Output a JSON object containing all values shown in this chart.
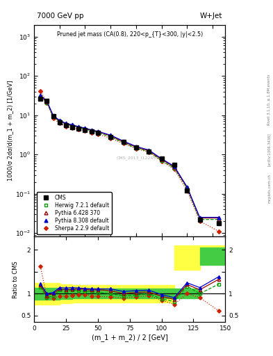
{
  "title_top": "7000 GeV pp",
  "title_right": "W+Jet",
  "main_title": "Pruned jet mass (CA(0.8), 220<p_{T}<300, |y|<2.5)",
  "xlabel": "(m_1 + m_2) / 2 [GeV]",
  "ylabel_main": "1000/σ 2dσ/d(m_1 + m_2) [1/GeV]",
  "ylabel_ratio": "Ratio to CMS",
  "watermark": "CMS_2013_I1224539",
  "rivet_label": "Rivet 3.1.10, ≥ 1.8M events",
  "arxiv_label": "[arXiv:1306.3436]",
  "mcplots_label": "mcplots.cern.ch",
  "xlim": [
    0,
    150
  ],
  "ylim_main": [
    0.008,
    2000
  ],
  "ylim_ratio": [
    0.35,
    2.3
  ],
  "cms_x": [
    5,
    10,
    15,
    20,
    25,
    30,
    35,
    40,
    45,
    50,
    60,
    70,
    80,
    90,
    100,
    110,
    120,
    130,
    145
  ],
  "cms_y": [
    26,
    23,
    9.5,
    6.5,
    5.5,
    5.0,
    4.5,
    4.2,
    3.8,
    3.5,
    2.8,
    2.1,
    1.5,
    1.2,
    0.8,
    0.55,
    0.12,
    0.022,
    0.018
  ],
  "herwig_x": [
    5,
    10,
    15,
    20,
    25,
    30,
    35,
    40,
    45,
    50,
    60,
    70,
    80,
    90,
    100,
    110,
    120,
    130,
    145
  ],
  "herwig_y": [
    30,
    21,
    9.0,
    7.0,
    5.8,
    5.4,
    4.8,
    4.4,
    4.0,
    3.6,
    2.8,
    2.0,
    1.45,
    1.2,
    0.7,
    0.45,
    0.14,
    0.022,
    0.022
  ],
  "pythia6_x": [
    5,
    10,
    15,
    20,
    25,
    30,
    35,
    40,
    45,
    50,
    60,
    70,
    80,
    90,
    100,
    110,
    120,
    130,
    145
  ],
  "pythia6_y": [
    31,
    22,
    9.5,
    7.2,
    6.0,
    5.5,
    5.0,
    4.6,
    4.1,
    3.8,
    3.0,
    2.1,
    1.55,
    1.25,
    0.75,
    0.48,
    0.145,
    0.024,
    0.024
  ],
  "pythia8_x": [
    5,
    10,
    15,
    20,
    25,
    30,
    35,
    40,
    45,
    50,
    60,
    70,
    80,
    90,
    100,
    110,
    120,
    130,
    145
  ],
  "pythia8_y": [
    32,
    23,
    9.8,
    7.4,
    6.2,
    5.7,
    5.1,
    4.7,
    4.2,
    3.9,
    3.1,
    2.2,
    1.6,
    1.3,
    0.78,
    0.5,
    0.15,
    0.025,
    0.025
  ],
  "sherpa_x": [
    5,
    10,
    15,
    20,
    25,
    30,
    35,
    40,
    45,
    50,
    60,
    70,
    80,
    90,
    100,
    110,
    120,
    130,
    145
  ],
  "sherpa_y": [
    42,
    21,
    8.5,
    6.2,
    5.2,
    4.8,
    4.4,
    4.1,
    3.6,
    3.3,
    2.6,
    1.9,
    1.4,
    1.15,
    0.68,
    0.42,
    0.12,
    0.02,
    0.011
  ],
  "ratio_herwig_x": [
    5,
    10,
    15,
    20,
    25,
    30,
    35,
    40,
    45,
    50,
    60,
    70,
    80,
    90,
    100,
    110,
    120,
    130,
    145
  ],
  "ratio_herwig_y": [
    1.15,
    0.91,
    0.95,
    1.08,
    1.05,
    1.08,
    1.07,
    1.05,
    1.05,
    1.03,
    1.0,
    0.95,
    0.97,
    1.0,
    0.88,
    0.82,
    1.17,
    1.0,
    1.22
  ],
  "ratio_pythia6_x": [
    5,
    10,
    15,
    20,
    25,
    30,
    35,
    40,
    45,
    50,
    60,
    70,
    80,
    90,
    100,
    110,
    120,
    130,
    145
  ],
  "ratio_pythia6_y": [
    1.19,
    0.96,
    1.0,
    1.11,
    1.09,
    1.1,
    1.11,
    1.1,
    1.08,
    1.09,
    1.07,
    1.0,
    1.03,
    1.04,
    0.94,
    0.87,
    1.21,
    1.09,
    1.33
  ],
  "ratio_pythia8_x": [
    5,
    10,
    15,
    20,
    25,
    30,
    35,
    40,
    45,
    50,
    60,
    70,
    80,
    90,
    100,
    110,
    120,
    130,
    145
  ],
  "ratio_pythia8_y": [
    1.23,
    1.0,
    1.03,
    1.14,
    1.13,
    1.14,
    1.13,
    1.12,
    1.11,
    1.11,
    1.11,
    1.05,
    1.07,
    1.08,
    0.98,
    0.91,
    1.25,
    1.14,
    1.39
  ],
  "ratio_sherpa_x": [
    5,
    10,
    15,
    20,
    25,
    30,
    35,
    40,
    45,
    50,
    60,
    70,
    80,
    90,
    100,
    110,
    120,
    130,
    145
  ],
  "ratio_sherpa_y": [
    1.62,
    0.91,
    0.89,
    0.95,
    0.95,
    0.96,
    0.98,
    0.98,
    0.95,
    0.94,
    0.93,
    0.9,
    0.93,
    0.96,
    0.85,
    0.76,
    1.0,
    0.91,
    0.61
  ],
  "band_x_edges": [
    0,
    10,
    20,
    30,
    50,
    70,
    90,
    110,
    130,
    150
  ],
  "band_yellow_lo": [
    0.75,
    0.75,
    0.78,
    0.8,
    0.8,
    0.8,
    0.8,
    1.55,
    1.82,
    1.82
  ],
  "band_yellow_hi": [
    1.25,
    1.25,
    1.22,
    1.2,
    1.2,
    1.2,
    1.2,
    2.1,
    2.1,
    2.1
  ],
  "band_green_lo": [
    0.86,
    0.86,
    0.88,
    0.89,
    0.89,
    0.89,
    0.89,
    0.9,
    1.65,
    1.65
  ],
  "band_green_hi": [
    1.14,
    1.14,
    1.12,
    1.11,
    1.11,
    1.11,
    1.11,
    1.12,
    2.05,
    2.05
  ],
  "color_cms": "#000000",
  "color_herwig": "#009900",
  "color_pythia6": "#cc2200",
  "color_pythia8": "#0000cc",
  "color_sherpa": "#cc2200",
  "color_band_yellow": "#ffff44",
  "color_band_green": "#44cc44"
}
